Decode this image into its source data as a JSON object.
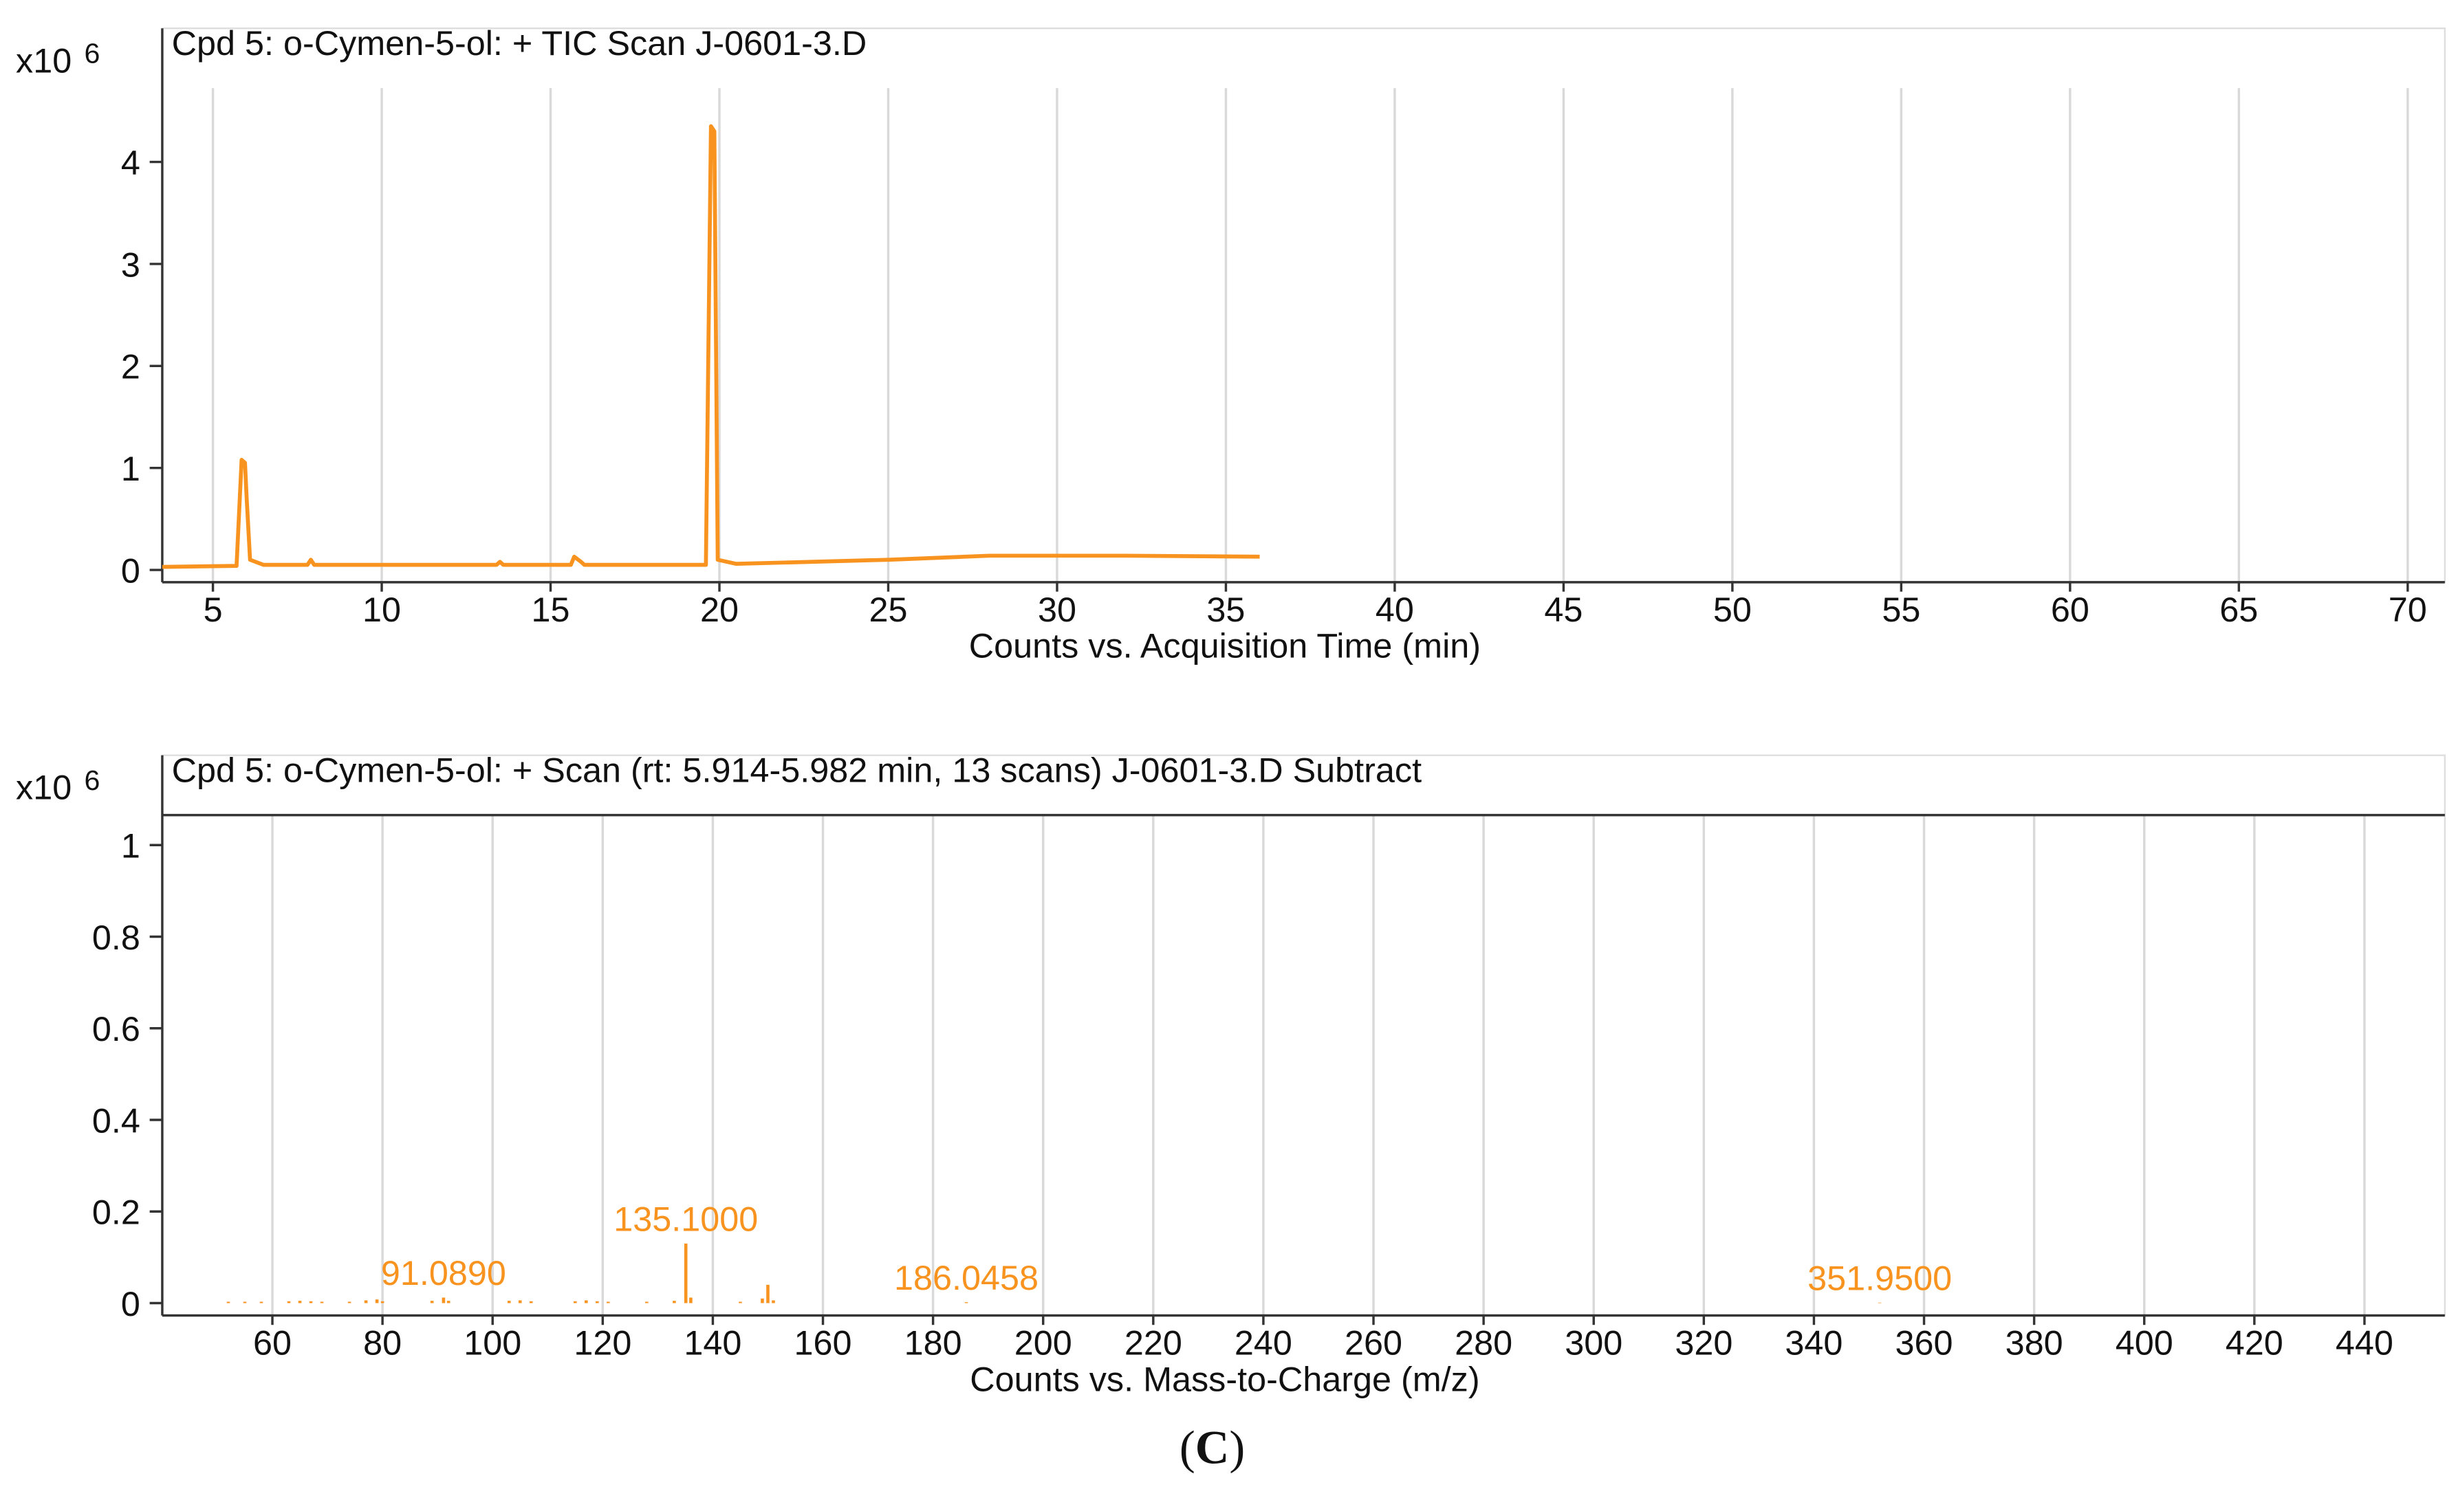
{
  "chart_data": [
    {
      "type": "line",
      "title": "Cpd 5: o-Cymen-5-ol: + TIC Scan J-0601-3.D",
      "y_multiplier": "x10",
      "y_exponent": "6",
      "x_label": "Counts vs. Acquisition Time (min)",
      "x": [
        3.5,
        5.7,
        5.85,
        5.95,
        6.0,
        6.1,
        6.5,
        7.8,
        7.9,
        8.0,
        13.4,
        13.5,
        13.6,
        15.6,
        15.7,
        15.9,
        16.0,
        19.6,
        19.75,
        19.85,
        19.95,
        20.5,
        25,
        28,
        32,
        36
      ],
      "series": [
        {
          "color": "#f7931e",
          "values": [
            0.03,
            0.04,
            1.08,
            1.05,
            0.7,
            0.1,
            0.05,
            0.05,
            0.1,
            0.05,
            0.05,
            0.08,
            0.05,
            0.05,
            0.13,
            0.08,
            0.05,
            0.05,
            4.35,
            4.3,
            0.1,
            0.06,
            0.1,
            0.14,
            0.14,
            0.13
          ]
        }
      ],
      "xlim": [
        3.5,
        71.1
      ],
      "xticks": [
        5,
        10,
        15,
        20,
        25,
        30,
        35,
        40,
        45,
        50,
        55,
        60,
        65,
        70
      ],
      "ylim": [
        -0.12,
        5.31
      ],
      "yticks": [
        0,
        1,
        2,
        3,
        4
      ],
      "grid": true
    },
    {
      "type": "stem",
      "title": "Cpd 5: o-Cymen-5-ol: + Scan (rt: 5.914-5.982 min, 13 scans) J-0601-3.D  Subtract",
      "y_multiplier": "x10",
      "y_exponent": "6",
      "x_label": "Counts vs. Mass-to-Charge (m/z)",
      "x": [
        52,
        55,
        58,
        63,
        65,
        67,
        69,
        74,
        77,
        79,
        80,
        89,
        91.089,
        92,
        103,
        105,
        107,
        115,
        117,
        119,
        121,
        128,
        133,
        135.1,
        136,
        145,
        149,
        150,
        151,
        186.0458,
        351.95
      ],
      "series": [
        {
          "color": "#f7931e",
          "values": [
            0.003,
            0.003,
            0.003,
            0.004,
            0.005,
            0.004,
            0.003,
            0.003,
            0.006,
            0.008,
            0.004,
            0.005,
            0.012,
            0.005,
            0.005,
            0.006,
            0.004,
            0.004,
            0.006,
            0.004,
            0.003,
            0.003,
            0.005,
            0.13,
            0.012,
            0.003,
            0.01,
            0.04,
            0.006,
            0.002,
            0.001
          ]
        }
      ],
      "annotations": [
        {
          "label": "91.0890",
          "x": 91.089,
          "y": 0.012
        },
        {
          "label": "135.1000",
          "x": 135.1,
          "y": 0.13
        },
        {
          "label": "186.0458",
          "x": 186.0458,
          "y": 0.002
        },
        {
          "label": "351.9500",
          "x": 351.95,
          "y": 0.001
        }
      ],
      "annotation_color": "#f7931e",
      "xlim": [
        40,
        454.6
      ],
      "xticks": [
        60,
        80,
        100,
        120,
        140,
        160,
        180,
        200,
        220,
        240,
        260,
        280,
        300,
        320,
        340,
        360,
        380,
        400,
        420,
        440
      ],
      "ylim": [
        -0.027,
        1.196
      ],
      "yticks": [
        0,
        0.2,
        0.4,
        0.6,
        0.8,
        1
      ],
      "grid": true
    }
  ],
  "caption": [
    "(",
    "C",
    ")"
  ]
}
